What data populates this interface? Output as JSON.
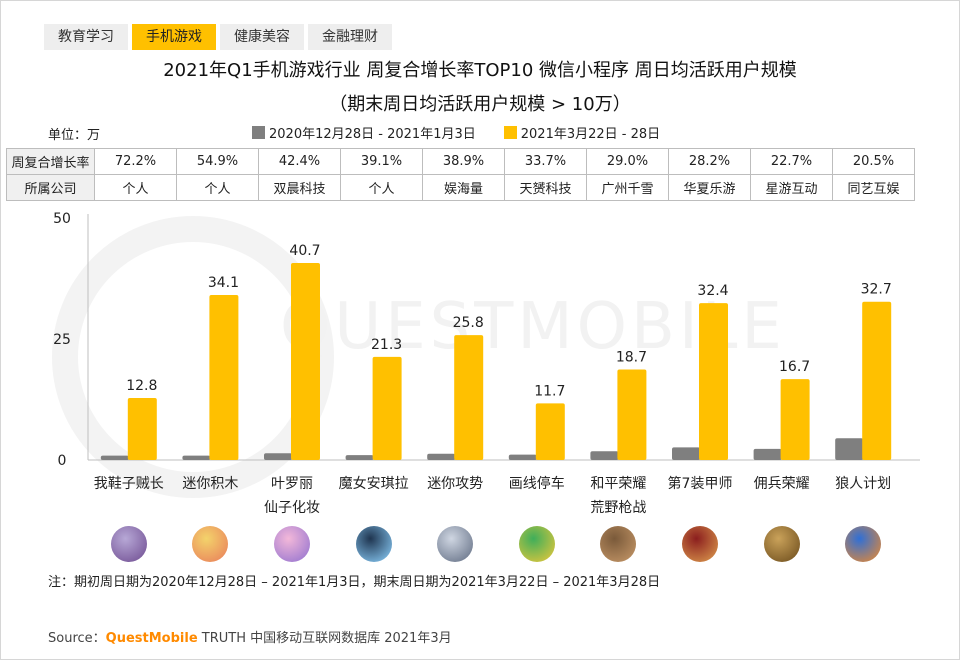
{
  "tabs": [
    {
      "label": "教育学习",
      "active": false
    },
    {
      "label": "手机游戏",
      "active": true
    },
    {
      "label": "健康美容",
      "active": false
    },
    {
      "label": "金融理财",
      "active": false
    }
  ],
  "title_line1": "2021年Q1手机游戏行业 周复合增长率TOP10 微信小程序 周日均活跃用户规模",
  "title_line2": "（期末周日均活跃用户规模 > 10万）",
  "unit_label": "单位：万",
  "watermark": "QUESTMOBILE",
  "table": {
    "row1_header": "周复合增长率",
    "row2_header": "所属公司",
    "growth": [
      "72.2%",
      "54.9%",
      "42.4%",
      "39.1%",
      "38.9%",
      "33.7%",
      "29.0%",
      "28.2%",
      "22.7%",
      "20.5%"
    ],
    "company": [
      "个人",
      "个人",
      "双晨科技",
      "个人",
      "娱海量",
      "天赟科技",
      "广州千雪",
      "华夏乐游",
      "星游互动",
      "同艺互娱"
    ]
  },
  "chart_data": {
    "type": "bar",
    "categories": [
      "我鞋子贼长",
      "迷你积木",
      "叶罗丽仙子化妆",
      "魔女安琪拉",
      "迷你攻势",
      "画线停车",
      "和平荣耀荒野枪战",
      "第7装甲师",
      "佣兵荣耀",
      "狼人计划"
    ],
    "category_lines": [
      [
        "我鞋子贼长"
      ],
      [
        "迷你积木"
      ],
      [
        "叶罗丽",
        "仙子化妆"
      ],
      [
        "魔女安琪拉"
      ],
      [
        "迷你攻势"
      ],
      [
        "画线停车"
      ],
      [
        "和平荣耀",
        "荒野枪战"
      ],
      [
        "第7装甲师"
      ],
      [
        "佣兵荣耀"
      ],
      [
        "狼人计划"
      ]
    ],
    "series": [
      {
        "name": "2020年12月28日 - 2021年1月3日",
        "color": "#7f7f7f",
        "values": [
          0.9,
          0.9,
          1.4,
          1.0,
          1.3,
          1.1,
          1.8,
          2.6,
          2.3,
          4.5
        ],
        "labeled": false
      },
      {
        "name": "2021年3月22日 - 28日",
        "color": "#ffc000",
        "values": [
          12.8,
          34.1,
          40.7,
          21.3,
          25.8,
          11.7,
          18.7,
          32.4,
          16.7,
          32.7
        ],
        "labeled": true
      }
    ],
    "y_ticks": [
      0,
      25,
      50
    ],
    "ylim": [
      0,
      50
    ],
    "grid": false,
    "legend_position": "top"
  },
  "app_icon_colors": [
    [
      "#b7a8d6",
      "#6d4a8f"
    ],
    [
      "#f3d36b",
      "#e97b5a"
    ],
    [
      "#f3b8d9",
      "#8f6fcf"
    ],
    [
      "#1f3550",
      "#8fd3ff"
    ],
    [
      "#cfd6e2",
      "#5e6a80"
    ],
    [
      "#3fae5a",
      "#f0c93a"
    ],
    [
      "#7a5a3a",
      "#c99a6a"
    ],
    [
      "#8b1e1e",
      "#e0a050"
    ],
    [
      "#caa25a",
      "#6a4a1a"
    ],
    [
      "#2f6fd6",
      "#f08a2a"
    ]
  ],
  "note": "注：期初周日期为2020年12月28日 – 2021年1月3日，期末周日期为2021年3月22日 – 2021年3月28日",
  "source": {
    "prefix": "Source：",
    "brand": "QuestMobile",
    "suffix": " TRUTH 中国移动互联网数据库 2021年3月"
  }
}
